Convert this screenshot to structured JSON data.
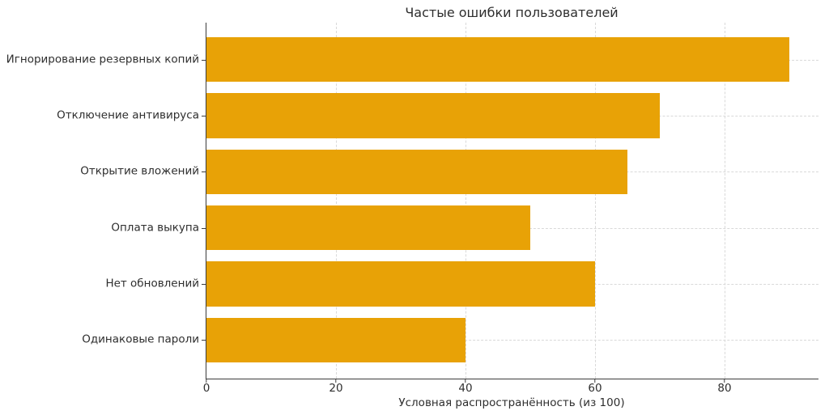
{
  "chart_data": {
    "type": "bar",
    "orientation": "horizontal",
    "title": "Частые ошибки пользователей",
    "categories": [
      "Игнорирование резервных копий",
      "Отключение антивируса",
      "Открытие вложений",
      "Оплата выкупа",
      "Нет обновлений",
      "Одинаковые пароли"
    ],
    "values": [
      90,
      70,
      65,
      50,
      60,
      40
    ],
    "xlabel": "Условная распространённость (из 100)",
    "ylabel": "",
    "xticks": [
      0,
      20,
      40,
      60,
      80
    ],
    "xlim": [
      0,
      94.5
    ],
    "grid": true,
    "legend": false,
    "bar_color": "#e8a206",
    "axis_color": "#3c3c3c",
    "grid_color": "#d9d9d9",
    "text_color": "#2e2e2e",
    "background_color": "#ffffff"
  }
}
